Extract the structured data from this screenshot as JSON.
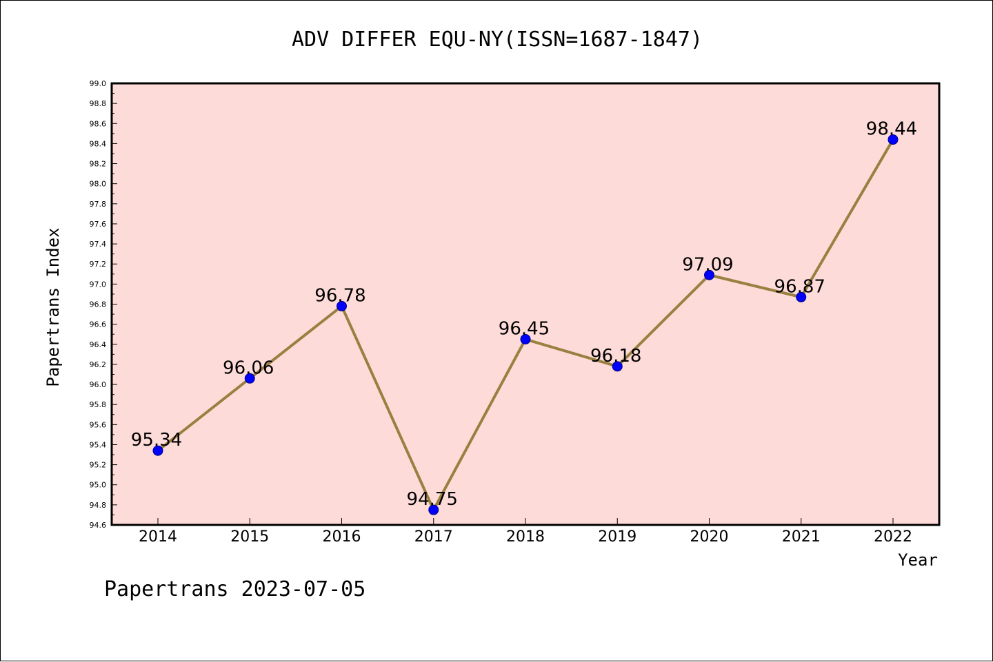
{
  "chart_data": {
    "type": "line",
    "title": "ADV DIFFER EQU-NY(ISSN=1687-1847)",
    "xlabel": "Year",
    "ylabel": "Papertrans Index",
    "categories": [
      "2014",
      "2015",
      "2016",
      "2017",
      "2018",
      "2019",
      "2020",
      "2021",
      "2022"
    ],
    "series": [
      {
        "values": [
          95.34,
          96.06,
          96.78,
          94.75,
          96.45,
          96.18,
          97.09,
          96.87,
          98.44
        ],
        "labels": [
          "95.34",
          "96.06",
          "96.78",
          "94.75",
          "96.45",
          "96.18",
          "97.09",
          "96.87",
          "98.44"
        ]
      }
    ],
    "ylim": [
      94.6,
      99.0
    ],
    "yticks": [
      "94.6",
      "94.8",
      "95.0",
      "95.2",
      "95.4",
      "95.6",
      "95.8",
      "96.0",
      "96.2",
      "96.4",
      "96.6",
      "96.8",
      "97.0",
      "97.2",
      "97.4",
      "97.6",
      "97.8",
      "98.0",
      "98.2",
      "98.4",
      "98.6",
      "98.8",
      "99.0"
    ],
    "grid": false,
    "legend": "none",
    "colors": {
      "plot_background": "#fddbd9",
      "line": "#9a8040",
      "marker": "#0000ff"
    }
  },
  "footer": {
    "text": "Papertrans 2023-07-05"
  }
}
